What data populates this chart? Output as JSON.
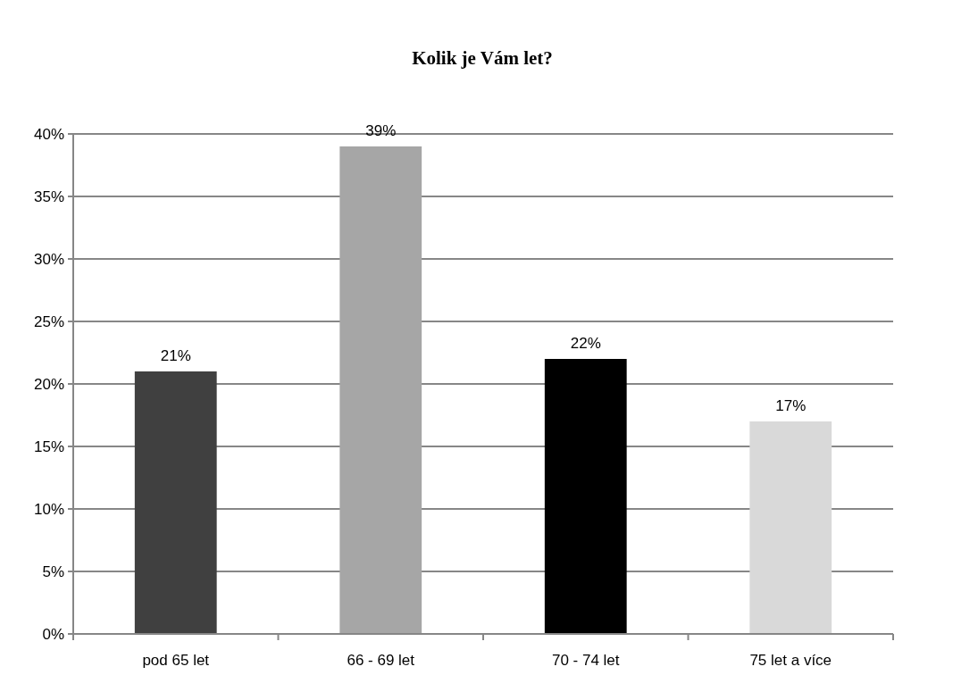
{
  "chart_data": {
    "type": "bar",
    "title": "Kolik je Vám let?",
    "categories": [
      "pod 65 let",
      "66 - 69 let",
      "70 - 74 let",
      "75 let a více"
    ],
    "values": [
      21,
      39,
      22,
      17
    ],
    "colors": [
      "#404040",
      "#a6a6a6",
      "#000000",
      "#d9d9d9"
    ],
    "value_labels": [
      "21%",
      "39%",
      "22%",
      "17%"
    ],
    "ylim": [
      0,
      40
    ],
    "yticks": [
      {
        "value": 0,
        "label": "0%"
      },
      {
        "value": 5,
        "label": "5%"
      },
      {
        "value": 10,
        "label": "10%"
      },
      {
        "value": 15,
        "label": "15%"
      },
      {
        "value": 20,
        "label": "20%"
      },
      {
        "value": 25,
        "label": "25%"
      },
      {
        "value": 30,
        "label": "30%"
      },
      {
        "value": 35,
        "label": "35%"
      },
      {
        "value": 40,
        "label": "40%"
      }
    ],
    "grid": "y"
  }
}
